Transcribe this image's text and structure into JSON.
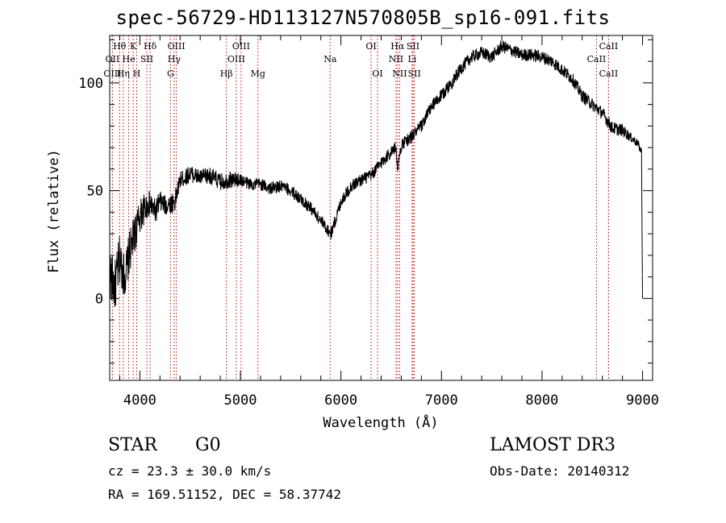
{
  "chart_data": {
    "type": "line",
    "title": "spec-56729-HD113127N570805B_sp16-091.fits",
    "xlabel": "Wavelength (Å)",
    "ylabel": "Flux (relative)",
    "xlim": [
      3700,
      9100
    ],
    "ylim": [
      -38,
      122
    ],
    "x_ticks": [
      4000,
      5000,
      6000,
      7000,
      8000,
      9000
    ],
    "y_ticks": [
      0,
      50,
      100
    ],
    "line_color": "#000000",
    "marker_color": "#cc0000",
    "spectrum": {
      "x": [
        3700,
        3750,
        3800,
        3850,
        3900,
        3950,
        4000,
        4050,
        4100,
        4150,
        4200,
        4250,
        4300,
        4350,
        4400,
        4450,
        4500,
        4600,
        4700,
        4800,
        4900,
        5000,
        5100,
        5200,
        5300,
        5400,
        5500,
        5600,
        5700,
        5800,
        5850,
        5900,
        5950,
        6000,
        6100,
        6200,
        6300,
        6400,
        6500,
        6550,
        6563,
        6600,
        6700,
        6800,
        6900,
        7000,
        7100,
        7200,
        7300,
        7400,
        7500,
        7600,
        7700,
        7800,
        7900,
        8000,
        8100,
        8200,
        8300,
        8400,
        8500,
        8600,
        8700,
        8800,
        8900,
        8950,
        8990,
        9000
      ],
      "y": [
        12,
        5,
        18,
        10,
        22,
        30,
        38,
        42,
        44,
        40,
        45,
        43,
        44,
        45,
        55,
        56,
        58,
        56,
        57,
        54,
        55,
        55,
        53,
        53,
        51,
        52,
        50,
        46,
        42,
        36,
        33,
        30,
        37,
        45,
        52,
        55,
        57,
        63,
        68,
        70,
        60,
        71,
        75,
        80,
        89,
        94,
        100,
        107,
        112,
        114,
        112,
        117,
        115,
        113,
        113,
        112,
        110,
        106,
        102,
        94,
        90,
        86,
        79,
        78,
        74,
        72,
        68,
        0
      ],
      "noise": [
        12,
        12,
        12,
        10,
        10,
        9,
        8,
        7,
        6,
        6,
        5,
        5,
        5,
        5,
        4,
        4,
        4,
        4,
        4,
        4,
        4,
        3,
        3,
        3,
        3,
        3,
        3,
        3,
        3,
        3,
        3,
        3,
        3,
        3,
        3,
        3,
        3,
        3,
        3,
        3,
        3,
        3,
        3,
        3,
        3,
        3,
        3,
        3,
        3,
        3,
        3,
        3,
        3,
        3,
        3,
        3,
        3,
        3,
        3,
        3,
        3,
        3,
        3,
        3,
        2,
        2,
        2,
        0
      ]
    },
    "line_markers": [
      {
        "label": "Hθ",
        "x": 3798,
        "row": 0
      },
      {
        "label": "OII",
        "x": 3727,
        "row": 1
      },
      {
        "label": "OIII",
        "x": 3727,
        "row": 2
      },
      {
        "label": "K",
        "x": 3934,
        "row": 0
      },
      {
        "label": "He",
        "x": 3889,
        "row": 1
      },
      {
        "label": "Hη",
        "x": 3835,
        "row": 2
      },
      {
        "label": "H",
        "x": 3969,
        "row": 2
      },
      {
        "label": "SII",
        "x": 4069,
        "row": 1
      },
      {
        "label": "Hδ",
        "x": 4102,
        "row": 0
      },
      {
        "label": "OIII",
        "x": 4363,
        "row": 0
      },
      {
        "label": "Hγ",
        "x": 4341,
        "row": 1
      },
      {
        "label": "G",
        "x": 4305,
        "row": 2
      },
      {
        "label": "OIII",
        "x": 5007,
        "row": 0
      },
      {
        "label": "OIII",
        "x": 4959,
        "row": 1
      },
      {
        "label": "Hβ",
        "x": 4861,
        "row": 2
      },
      {
        "label": "Mg",
        "x": 5175,
        "row": 2
      },
      {
        "label": "Na",
        "x": 5893,
        "row": 1
      },
      {
        "label": "OI",
        "x": 6300,
        "row": 0
      },
      {
        "label": "OI",
        "x": 6364,
        "row": 2
      },
      {
        "label": "Hα",
        "x": 6563,
        "row": 0
      },
      {
        "label": "SII",
        "x": 6717,
        "row": 0
      },
      {
        "label": "NII",
        "x": 6548,
        "row": 1
      },
      {
        "label": "Li",
        "x": 6708,
        "row": 1
      },
      {
        "label": "NII",
        "x": 6584,
        "row": 2
      },
      {
        "label": "SII",
        "x": 6731,
        "row": 2
      },
      {
        "label": "CaII",
        "x": 8662,
        "row": 0
      },
      {
        "label": "CaII",
        "x": 8542,
        "row": 1
      },
      {
        "label": "CaII",
        "x": 8662,
        "row": 2
      }
    ]
  },
  "info": {
    "class_label": "STAR",
    "subclass": "G0",
    "survey": "LAMOST DR3",
    "cz": "cz = 23.3 ± 30.0 km/s",
    "obs_date": "Obs-Date: 20140312",
    "coords": "RA = 169.51152, DEC =  58.37742"
  }
}
